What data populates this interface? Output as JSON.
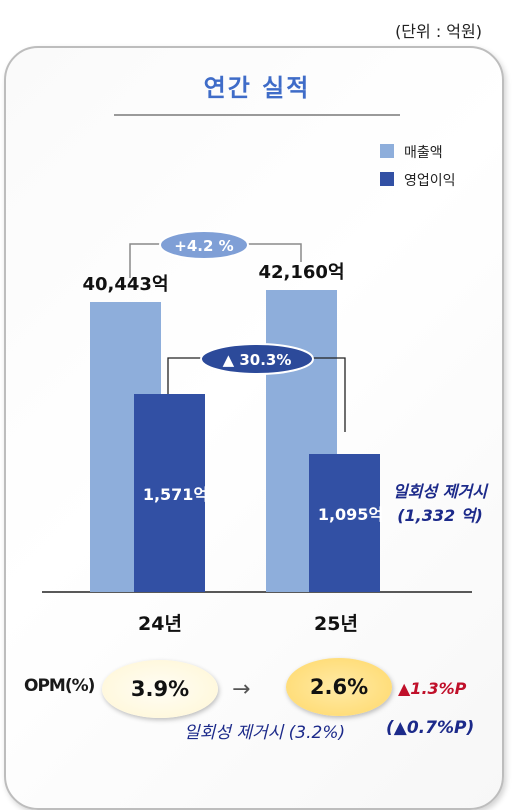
{
  "unit_note": "(단위 : 억원)",
  "title": "연간 실적",
  "colors": {
    "revenue": "#8eaedb",
    "op_income": "#3250a4",
    "title": "#3f6cc8",
    "badge_light": "#7f9fd6",
    "badge_dark": "#2c4a9a",
    "note_text": "#1c2a8a",
    "delta_red": "#c0102a"
  },
  "chart_data": {
    "type": "bar",
    "categories": [
      "24년",
      "25년"
    ],
    "series": [
      {
        "name": "매출액",
        "values": [
          40443,
          42160
        ],
        "labels": [
          "40,443억",
          "42,160억"
        ]
      },
      {
        "name": "영업이익",
        "values": [
          1571,
          1095
        ],
        "labels": [
          "1,571억",
          "1,095억"
        ]
      }
    ],
    "legend_placement": "top-right",
    "ylim": [
      0,
      48000
    ],
    "annotations": {
      "revenue_growth": "+4.2 %",
      "op_income_change": "▲ 30.3%",
      "one_off_note": "일회성 제거시",
      "one_off_value": "(1,332 억)"
    }
  },
  "opm": {
    "label": "OPM(%)",
    "prev": "3.9%",
    "curr": "2.6%",
    "arrow": "→",
    "delta": "▲1.3%P",
    "note": "일회성 제거시 (3.2%)",
    "note_delta": "(▲0.7%P)"
  }
}
